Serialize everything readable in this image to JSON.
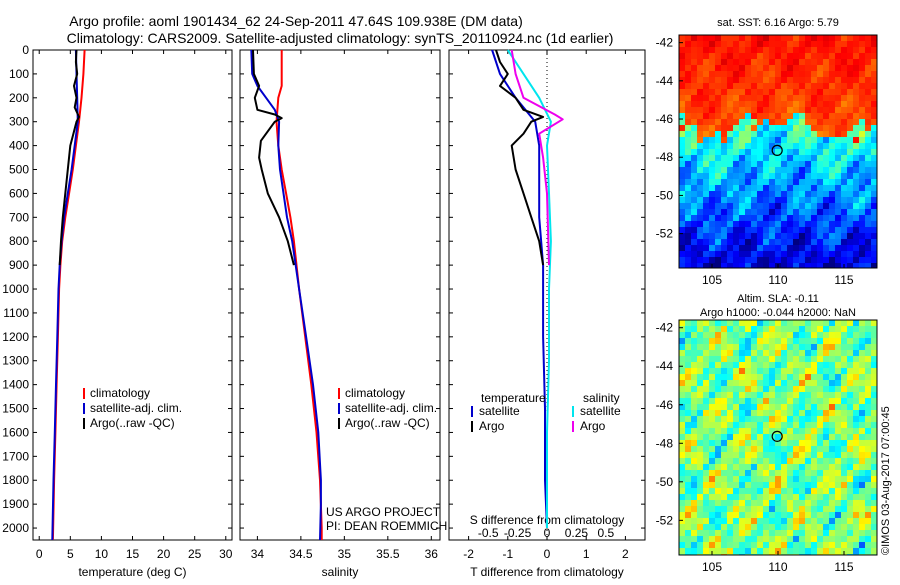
{
  "header": {
    "line1": "Argo profile: aoml 1901434_62 24-Sep-2011 47.64S 109.938E (DM data)",
    "line2": "Climatology: CARS2009. Satellite-adjusted climatology: synTS_20110924.nc (1d earlier)"
  },
  "colors": {
    "climatology": "#ff0000",
    "satellite": "#0000cc",
    "argo": "#000000",
    "salinity_satellite": "#00e5ee",
    "salinity_argo": "#ee00ee"
  },
  "chart_data": [
    {
      "type": "line",
      "panel": "temperature",
      "xlabel": "temperature (deg C)",
      "xlim": [
        -1,
        31
      ],
      "xticks": [
        0,
        5,
        10,
        15,
        20,
        25,
        30
      ],
      "ylim": [
        2050,
        0
      ],
      "yticks": [
        0,
        100,
        200,
        300,
        400,
        500,
        600,
        700,
        800,
        900,
        1000,
        1100,
        1200,
        1300,
        1400,
        1500,
        1600,
        1700,
        1800,
        1900,
        2000
      ],
      "legend": [
        "climatology",
        "satellite-adj. clim.",
        "Argo(..raw -QC)"
      ],
      "legend_placement": "lower-right",
      "series": [
        {
          "name": "climatology",
          "color": "#ff0000",
          "points": [
            [
              7.3,
              0
            ],
            [
              7.1,
              100
            ],
            [
              6.8,
              200
            ],
            [
              6.4,
              300
            ],
            [
              5.9,
              400
            ],
            [
              5.4,
              500
            ],
            [
              4.8,
              600
            ],
            [
              4.2,
              700
            ],
            [
              3.7,
              800
            ],
            [
              3.4,
              900
            ],
            [
              3.2,
              1000
            ],
            [
              3.0,
              1200
            ],
            [
              2.8,
              1400
            ],
            [
              2.6,
              1600
            ],
            [
              2.4,
              1800
            ],
            [
              2.2,
              2050
            ]
          ]
        },
        {
          "name": "satellite-adj. clim.",
          "color": "#0000cc",
          "points": [
            [
              5.9,
              0
            ],
            [
              6.0,
              100
            ],
            [
              6.1,
              200
            ],
            [
              6.2,
              300
            ],
            [
              5.7,
              400
            ],
            [
              5.2,
              500
            ],
            [
              4.6,
              600
            ],
            [
              4.0,
              700
            ],
            [
              3.6,
              800
            ],
            [
              3.3,
              900
            ],
            [
              3.1,
              1000
            ],
            [
              2.9,
              1200
            ],
            [
              2.7,
              1400
            ],
            [
              2.5,
              1600
            ],
            [
              2.3,
              1800
            ],
            [
              2.1,
              2050
            ]
          ]
        },
        {
          "name": "Argo(..raw -QC)",
          "color": "#000000",
          "points": [
            [
              6.0,
              0
            ],
            [
              5.9,
              50
            ],
            [
              6.1,
              100
            ],
            [
              5.6,
              150
            ],
            [
              6.0,
              200
            ],
            [
              5.7,
              240
            ],
            [
              6.4,
              280
            ],
            [
              6.0,
              300
            ],
            [
              5.5,
              350
            ],
            [
              5.0,
              400
            ],
            [
              4.6,
              500
            ],
            [
              4.2,
              600
            ],
            [
              3.8,
              700
            ],
            [
              3.5,
              800
            ],
            [
              3.3,
              900
            ]
          ]
        }
      ]
    },
    {
      "type": "line",
      "panel": "salinity",
      "xlabel": "salinity",
      "xlim": [
        33.8,
        36.1
      ],
      "xticks": [
        34,
        34.5,
        35,
        35.5,
        36
      ],
      "xticklabels": [
        "34",
        "34.5",
        "35",
        "35.5",
        "36"
      ],
      "ylim": [
        2050,
        0
      ],
      "legend": [
        "climatology",
        "satellite-adj. clim.",
        "Argo(..raw -QC)"
      ],
      "legend_placement": "lower-right",
      "annotation": [
        "US ARGO PROJECT",
        "PI: DEAN ROEMMICH"
      ],
      "series": [
        {
          "name": "climatology",
          "color": "#ff0000",
          "points": [
            [
              34.28,
              0
            ],
            [
              34.28,
              150
            ],
            [
              34.24,
              200
            ],
            [
              34.22,
              300
            ],
            [
              34.24,
              400
            ],
            [
              34.28,
              500
            ],
            [
              34.33,
              600
            ],
            [
              34.38,
              700
            ],
            [
              34.42,
              800
            ],
            [
              34.48,
              1000
            ],
            [
              34.55,
              1200
            ],
            [
              34.62,
              1400
            ],
            [
              34.68,
              1600
            ],
            [
              34.72,
              1800
            ],
            [
              34.74,
              2000
            ],
            [
              34.74,
              2050
            ]
          ]
        },
        {
          "name": "satellite-adj. clim.",
          "color": "#0000cc",
          "points": [
            [
              33.93,
              0
            ],
            [
              33.94,
              100
            ],
            [
              34.0,
              150
            ],
            [
              34.1,
              200
            ],
            [
              34.2,
              250
            ],
            [
              34.25,
              300
            ],
            [
              34.24,
              400
            ],
            [
              34.26,
              500
            ],
            [
              34.3,
              600
            ],
            [
              34.34,
              700
            ],
            [
              34.4,
              800
            ],
            [
              34.48,
              1000
            ],
            [
              34.56,
              1200
            ],
            [
              34.64,
              1400
            ],
            [
              34.7,
              1600
            ],
            [
              34.73,
              1800
            ],
            [
              34.73,
              1900
            ],
            [
              34.72,
              2050
            ]
          ]
        },
        {
          "name": "Argo(..raw -QC)",
          "color": "#000000",
          "points": [
            [
              33.95,
              0
            ],
            [
              33.96,
              100
            ],
            [
              34.02,
              150
            ],
            [
              33.97,
              200
            ],
            [
              34.0,
              250
            ],
            [
              34.2,
              270
            ],
            [
              34.28,
              285
            ],
            [
              34.2,
              300
            ],
            [
              34.04,
              380
            ],
            [
              34.02,
              450
            ],
            [
              34.05,
              500
            ],
            [
              34.12,
              600
            ],
            [
              34.25,
              700
            ],
            [
              34.35,
              800
            ],
            [
              34.42,
              900
            ]
          ]
        }
      ]
    },
    {
      "type": "line",
      "panel": "difference",
      "xlabel": "T difference from climatology",
      "xlabel_top": "S difference from climatology",
      "xlim": [
        -2.5,
        2.5
      ],
      "xticks": [
        -2,
        -1,
        0,
        1,
        2
      ],
      "s_ticks": [
        -0.5,
        -0.25,
        0,
        0.25,
        0.5
      ],
      "s_ticklabels": [
        "-0.5",
        "-0.25",
        "0",
        "0.25",
        "0.5"
      ],
      "ylim": [
        2050,
        0
      ],
      "legend_titles": [
        "temperature",
        "salinity"
      ],
      "legend": [
        "satellite",
        "Argo",
        "satellite",
        "Argo"
      ],
      "legend_placement": "lower-center",
      "series": [
        {
          "name": "temperature satellite",
          "color": "#0000cc",
          "points": [
            [
              -1.4,
              0
            ],
            [
              -1.2,
              100
            ],
            [
              -0.8,
              200
            ],
            [
              -0.3,
              300
            ],
            [
              -0.2,
              400
            ],
            [
              -0.2,
              500
            ],
            [
              -0.2,
              700
            ],
            [
              -0.1,
              900
            ],
            [
              -0.1,
              1200
            ],
            [
              -0.05,
              1500
            ],
            [
              -0.05,
              1800
            ],
            [
              0,
              2000
            ]
          ]
        },
        {
          "name": "temperature Argo",
          "color": "#000000",
          "points": [
            [
              -1.3,
              0
            ],
            [
              -1.2,
              50
            ],
            [
              -1.0,
              100
            ],
            [
              -1.2,
              150
            ],
            [
              -0.8,
              200
            ],
            [
              -0.6,
              250
            ],
            [
              -0.1,
              280
            ],
            [
              -0.4,
              300
            ],
            [
              -0.6,
              350
            ],
            [
              -0.9,
              400
            ],
            [
              -0.8,
              500
            ],
            [
              -0.6,
              600
            ],
            [
              -0.4,
              700
            ],
            [
              -0.2,
              800
            ],
            [
              -0.1,
              900
            ]
          ]
        },
        {
          "name": "salinity satellite",
          "color": "#00e5ee",
          "points": [
            [
              -1.0,
              0
            ],
            [
              -0.6,
              100
            ],
            [
              -0.2,
              200
            ],
            [
              0.1,
              300
            ],
            [
              0.0,
              400
            ],
            [
              0.05,
              600
            ],
            [
              0.1,
              800
            ],
            [
              0.05,
              1000
            ],
            [
              0.05,
              1300
            ],
            [
              0,
              1600
            ],
            [
              0,
              2000
            ]
          ]
        },
        {
          "name": "salinity Argo",
          "color": "#ee00ee",
          "points": [
            [
              -0.9,
              0
            ],
            [
              -0.8,
              100
            ],
            [
              -0.6,
              200
            ],
            [
              0.2,
              270
            ],
            [
              0.4,
              290
            ],
            [
              -0.2,
              350
            ],
            [
              -0.1,
              450
            ],
            [
              0.0,
              600
            ],
            [
              0.05,
              900
            ]
          ]
        }
      ]
    },
    {
      "type": "heatmap",
      "panel": "sst-map",
      "title": "sat. SST: 6.16  Argo: 5.79",
      "xlim": [
        102.5,
        117.5
      ],
      "xticks": [
        105,
        110,
        115
      ],
      "ylim": [
        -53.8,
        -41.6
      ],
      "yticks": [
        -42,
        -44,
        -46,
        -48,
        -50,
        -52
      ],
      "marker": {
        "lon": 109.938,
        "lat": -47.64
      }
    },
    {
      "type": "heatmap",
      "panel": "sla-map",
      "title": "Altim. SLA: -0.11",
      "subtitle": "Argo h1000: -0.044 h2000: NaN",
      "xlim": [
        102.5,
        117.5
      ],
      "xticks": [
        105,
        110,
        115
      ],
      "ylim": [
        -53.8,
        -41.6
      ],
      "yticks": [
        -42,
        -44,
        -46,
        -48,
        -50,
        -52
      ],
      "marker": {
        "lon": 109.938,
        "lat": -47.64
      }
    }
  ],
  "footer": {
    "credit": "©IMOS 03-Aug-2017 07:00:45"
  }
}
